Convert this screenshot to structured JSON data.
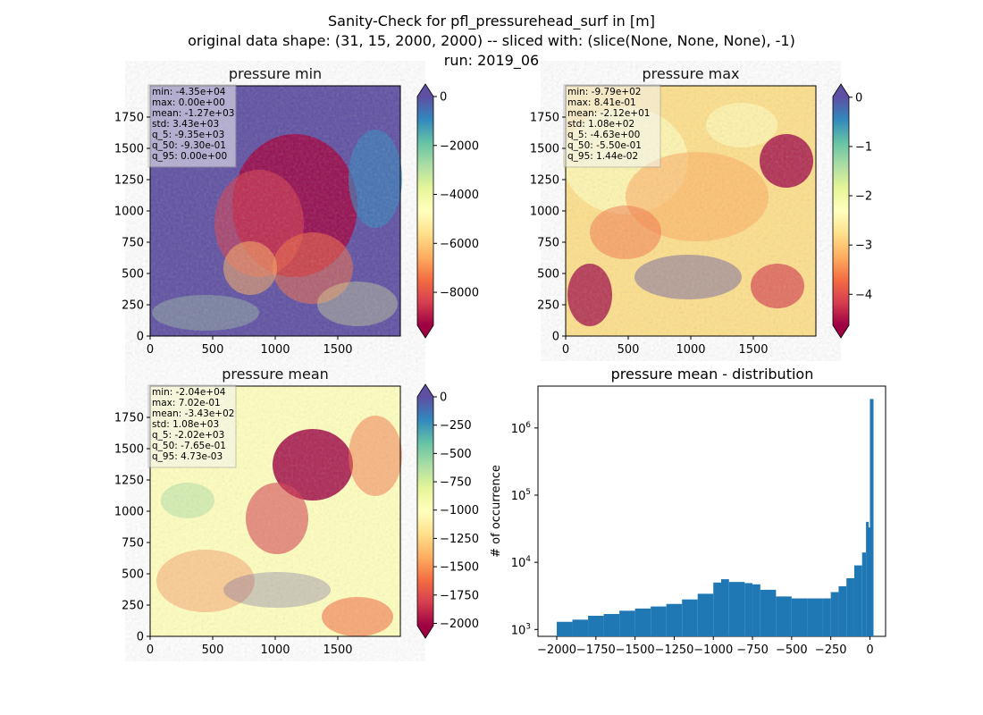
{
  "figure": {
    "title_lines": [
      "Sanity-Check for pfl_pressurehead_surf in [m]",
      "original data shape: (31, 15, 2000, 2000) -- sliced with: (slice(None, None, None), -1)",
      "run: 2019_06"
    ]
  },
  "chart_data": [
    {
      "type": "heatmap",
      "title": "pressure min",
      "x_ticks": [
        0,
        500,
        1000,
        1500
      ],
      "y_ticks": [
        0,
        250,
        500,
        750,
        1000,
        1250,
        1500,
        1750
      ],
      "xlim": [
        0,
        2000
      ],
      "ylim": [
        0,
        2000
      ],
      "colorbar": {
        "ticks": [
          0,
          -2000,
          -4000,
          -6000,
          -8000
        ],
        "range": [
          -9350,
          0
        ],
        "extend": "both",
        "cmap": "Spectral"
      },
      "stats": [
        "min: -4.35e+04",
        "max: 0.00e+00",
        "mean: -1.27e+03",
        "std: 3.43e+03",
        "q_5: -9.35e+03",
        "q_50: -9.30e-01",
        "q_95: 0.00e+00"
      ]
    },
    {
      "type": "heatmap",
      "title": "pressure max",
      "x_ticks": [
        0,
        500,
        1000,
        1500
      ],
      "y_ticks": [
        0,
        250,
        500,
        750,
        1000,
        1250,
        1500,
        1750
      ],
      "xlim": [
        0,
        2000
      ],
      "ylim": [
        0,
        2000
      ],
      "colorbar": {
        "ticks": [
          0,
          -1,
          -2,
          -3,
          -4
        ],
        "range": [
          -4.63,
          0.0144
        ],
        "extend": "both",
        "cmap": "Spectral"
      },
      "stats": [
        "min: -9.79e+02",
        "max: 8.41e-01",
        "mean: -2.12e+01",
        "std: 1.08e+02",
        "q_5: -4.63e+00",
        "q_50: -5.50e-01",
        "q_95: 1.44e-02"
      ]
    },
    {
      "type": "heatmap",
      "title": "pressure mean",
      "x_ticks": [
        0,
        500,
        1000,
        1500
      ],
      "y_ticks": [
        0,
        250,
        500,
        750,
        1000,
        1250,
        1500,
        1750
      ],
      "xlim": [
        0,
        2000
      ],
      "ylim": [
        0,
        2000
      ],
      "colorbar": {
        "ticks": [
          0,
          -250,
          -500,
          -750,
          -1000,
          -1250,
          -1500,
          -1750,
          -2000
        ],
        "range": [
          -2020,
          0.00473
        ],
        "extend": "both",
        "cmap": "Spectral"
      },
      "stats": [
        "min: -2.04e+04",
        "max: 7.02e-01",
        "mean: -3.43e+02",
        "std: 1.08e+03",
        "q_5: -2.02e+03",
        "q_50: -7.65e-01",
        "q_95: 4.73e-03"
      ]
    },
    {
      "type": "bar",
      "title": "pressure mean - distribution",
      "ylabel": "# of occurrence",
      "xlabel": "",
      "x_ticks": [
        -2000,
        -1750,
        -1500,
        -1250,
        -1000,
        -750,
        -500,
        -250,
        0
      ],
      "y_scale": "log",
      "y_ticks": [
        {
          "value": 1000,
          "label_base": "10",
          "label_exp": "3"
        },
        {
          "value": 10000,
          "label_base": "10",
          "label_exp": "4"
        },
        {
          "value": 100000,
          "label_base": "10",
          "label_exp": "5"
        },
        {
          "value": 1000000,
          "label_base": "10",
          "label_exp": "6"
        }
      ],
      "xlim": [
        -2120,
        100
      ],
      "ylim": [
        790,
        4200000
      ],
      "color": "#1f77b4",
      "bins": [
        {
          "x": -2000,
          "y": 1300
        },
        {
          "x": -1900,
          "y": 1400
        },
        {
          "x": -1800,
          "y": 1600
        },
        {
          "x": -1700,
          "y": 1700
        },
        {
          "x": -1600,
          "y": 1900
        },
        {
          "x": -1500,
          "y": 2050
        },
        {
          "x": -1400,
          "y": 2200
        },
        {
          "x": -1300,
          "y": 2400
        },
        {
          "x": -1200,
          "y": 2800
        },
        {
          "x": -1100,
          "y": 3400
        },
        {
          "x": -1000,
          "y": 5000
        },
        {
          "x": -950,
          "y": 5600
        },
        {
          "x": -900,
          "y": 5100
        },
        {
          "x": -800,
          "y": 4900
        },
        {
          "x": -750,
          "y": 4700
        },
        {
          "x": -700,
          "y": 3900
        },
        {
          "x": -600,
          "y": 3100
        },
        {
          "x": -500,
          "y": 2900
        },
        {
          "x": -400,
          "y": 2900
        },
        {
          "x": -300,
          "y": 2900
        },
        {
          "x": -250,
          "y": 3600
        },
        {
          "x": -200,
          "y": 4400
        },
        {
          "x": -150,
          "y": 5800
        },
        {
          "x": -100,
          "y": 9000
        },
        {
          "x": -50,
          "y": 14000
        },
        {
          "x": -25,
          "y": 40000
        },
        {
          "x": -10,
          "y": 33000
        },
        {
          "x": 0,
          "y": 2700000
        }
      ]
    }
  ]
}
